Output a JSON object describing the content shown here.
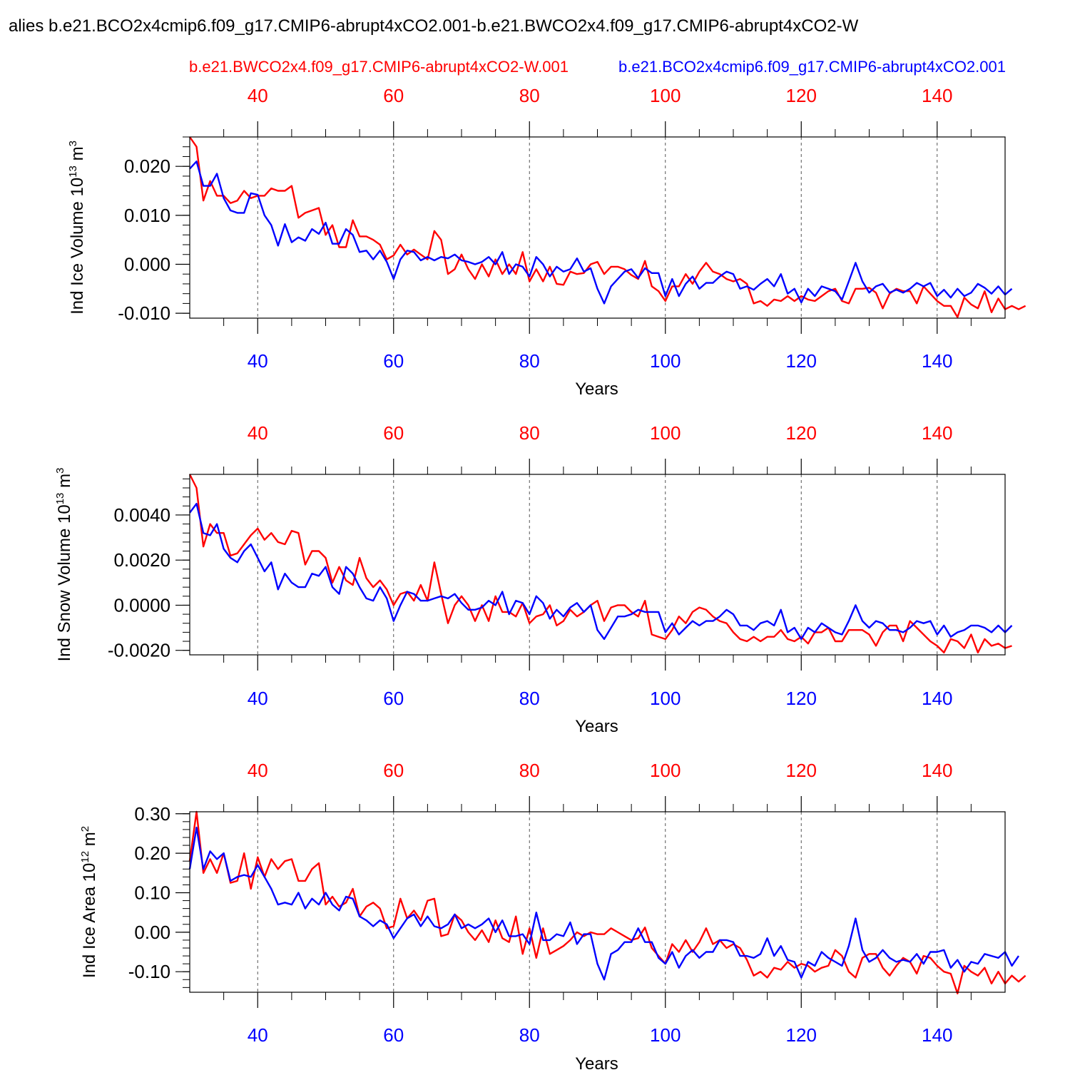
{
  "title": "alies b.e21.BCO2x4cmip6.f09_g17.CMIP6-abrupt4xCO2.001-b.e21.BWCO2x4.f09_g17.CMIP6-abrupt4xCO2-W",
  "legend": {
    "red_label": "b.e21.BWCO2x4.f09_g17.CMIP6-abrupt4xCO2-W.001",
    "blue_label": "b.e21.BCO2x4cmip6.f09_g17.CMIP6-abrupt4xCO2.001"
  },
  "colors": {
    "red": "#ff0000",
    "blue": "#0000ff",
    "axis": "#000000",
    "grid": "#555555"
  },
  "chart_data": [
    {
      "type": "line",
      "name": "ice-volume",
      "ylabel": "Ind Ice Volume 10",
      "yunit_exp": "13",
      "yunit": " m",
      "yunit_pow": "3",
      "xlabel": "Years",
      "xlim": [
        30,
        150
      ],
      "ylim": [
        -0.011,
        0.026
      ],
      "xticks": [
        40,
        60,
        80,
        100,
        120,
        140
      ],
      "xtick_labels": [
        "40",
        "60",
        "80",
        "100",
        "120",
        "140"
      ],
      "yticks": [
        0.02,
        0.01,
        0.0,
        -0.01
      ],
      "ytick_labels": [
        "0.020",
        "0.010",
        "0.000",
        "-0.010"
      ],
      "yminor_step": 0.002,
      "series": [
        {
          "name": "red",
          "color": "#ff0000",
          "x_start": 30,
          "values": [
            0.026,
            0.024,
            0.013,
            0.017,
            0.014,
            0.014,
            0.0125,
            0.013,
            0.015,
            0.0135,
            0.014,
            0.014,
            0.0155,
            0.015,
            0.015,
            0.016,
            0.0095,
            0.0105,
            0.011,
            0.0115,
            0.006,
            0.008,
            0.0035,
            0.0035,
            0.009,
            0.0057,
            0.0057,
            0.005,
            0.004,
            0.001,
            0.0018,
            0.004,
            0.002,
            0.003,
            0.002,
            0.001,
            0.0068,
            0.005,
            -0.002,
            -0.001,
            0.002,
            -0.001,
            -0.003,
            0.0,
            -0.0025,
            0.001,
            -0.002,
            0.0,
            -0.002,
            0.0025,
            -0.0035,
            -0.001,
            -0.0035,
            -0.0005,
            -0.004,
            -0.0042,
            -0.0015,
            -0.002,
            -0.0018,
            0.0,
            0.0005,
            -0.002,
            -0.0005,
            -0.0005,
            -0.001,
            -0.0022,
            -0.003,
            0.0007,
            -0.0045,
            -0.0055,
            -0.0075,
            -0.0045,
            -0.0045,
            -0.002,
            -0.004,
            -0.0015,
            0.0003,
            -0.0015,
            -0.002,
            -0.003,
            -0.0035,
            -0.003,
            -0.004,
            -0.008,
            -0.0075,
            -0.0085,
            -0.0072,
            -0.0075,
            -0.0065,
            -0.0075,
            -0.0065,
            -0.0072,
            -0.0075,
            -0.0065,
            -0.0055,
            -0.005,
            -0.0075,
            -0.008,
            -0.005,
            -0.005,
            -0.0048,
            -0.0058,
            -0.009,
            -0.006,
            -0.005,
            -0.0055,
            -0.0055,
            -0.008,
            -0.0045,
            -0.006,
            -0.0075,
            -0.0085,
            -0.0085,
            -0.0108,
            -0.0068,
            -0.0082,
            -0.009,
            -0.0055,
            -0.0098,
            -0.007,
            -0.0092,
            -0.0085,
            -0.0092,
            -0.0085
          ]
        },
        {
          "name": "blue",
          "color": "#0000ff",
          "x_start": 30,
          "values": [
            0.0195,
            0.021,
            0.016,
            0.016,
            0.0185,
            0.0135,
            0.011,
            0.0105,
            0.0105,
            0.0145,
            0.0142,
            0.01,
            0.008,
            0.0038,
            0.0082,
            0.0045,
            0.0055,
            0.0048,
            0.0072,
            0.0062,
            0.0085,
            0.0042,
            0.0042,
            0.0072,
            0.006,
            0.0025,
            0.0028,
            0.001,
            0.0028,
            0.0005,
            -0.003,
            0.001,
            0.0028,
            0.0025,
            0.0008,
            0.0015,
            0.0008,
            0.0015,
            0.0012,
            0.002,
            0.0008,
            0.0005,
            0.0,
            0.0005,
            0.0015,
            0.0,
            0.0025,
            -0.002,
            0.0,
            -0.0005,
            -0.0025,
            0.0015,
            0.0,
            -0.0025,
            -0.0005,
            -0.0015,
            -0.001,
            0.0012,
            -0.0015,
            -0.0008,
            -0.005,
            -0.008,
            -0.0045,
            -0.003,
            -0.0015,
            -0.001,
            -0.0028,
            -0.0008,
            -0.0018,
            -0.0018,
            -0.0065,
            -0.003,
            -0.0065,
            -0.004,
            -0.0025,
            -0.005,
            -0.0038,
            -0.0038,
            -0.0025,
            -0.0015,
            -0.002,
            -0.005,
            -0.0045,
            -0.0052,
            -0.004,
            -0.003,
            -0.0045,
            -0.002,
            -0.006,
            -0.005,
            -0.0078,
            -0.005,
            -0.0065,
            -0.0045,
            -0.005,
            -0.0055,
            -0.0072,
            -0.0035,
            0.0003,
            -0.0035,
            -0.0058,
            -0.0045,
            -0.004,
            -0.0058,
            -0.0052,
            -0.0058,
            -0.005,
            -0.0038,
            -0.0045,
            -0.0038,
            -0.0065,
            -0.0052,
            -0.0068,
            -0.005,
            -0.0065,
            -0.0058,
            -0.004,
            -0.0048,
            -0.006,
            -0.0045,
            -0.0062,
            -0.005
          ]
        }
      ]
    },
    {
      "type": "line",
      "name": "snow-volume",
      "ylabel": "Ind Snow Volume 10",
      "yunit_exp": "13",
      "yunit": " m",
      "yunit_pow": "3",
      "xlabel": "Years",
      "xlim": [
        30,
        150
      ],
      "ylim": [
        -0.0022,
        0.0058
      ],
      "xticks": [
        40,
        60,
        80,
        100,
        120,
        140
      ],
      "xtick_labels": [
        "40",
        "60",
        "80",
        "100",
        "120",
        "140"
      ],
      "yticks": [
        0.004,
        0.002,
        0.0,
        -0.002
      ],
      "ytick_labels": [
        "0.0040",
        "0.0020",
        "0.0000",
        "-0.0020"
      ],
      "yminor_step": 0.0004,
      "series": [
        {
          "name": "red",
          "color": "#ff0000",
          "x_start": 30,
          "values": [
            0.0058,
            0.0052,
            0.0026,
            0.0036,
            0.0032,
            0.0032,
            0.0022,
            0.0023,
            0.0027,
            0.0031,
            0.0034,
            0.0029,
            0.0032,
            0.0028,
            0.0027,
            0.0033,
            0.0032,
            0.0018,
            0.0024,
            0.0024,
            0.0021,
            0.001,
            0.0017,
            0.0011,
            0.0009,
            0.0021,
            0.0012,
            0.0008,
            0.0011,
            0.0007,
            0.0,
            0.0005,
            0.0006,
            0.0002,
            0.0009,
            0.0002,
            0.0019,
            0.0005,
            -0.0008,
            0.0,
            0.0004,
            0.0,
            -0.0007,
            0.0,
            -0.0007,
            0.0004,
            -0.0003,
            -0.0003,
            -0.0005,
            0.0001,
            -0.0008,
            -0.0005,
            -0.0004,
            0.0,
            -0.0009,
            -0.0007,
            -0.0002,
            -0.0005,
            -0.0003,
            0.0,
            0.0002,
            -0.0007,
            -0.0001,
            0.0,
            0.0,
            -0.0003,
            -0.0005,
            0.0002,
            -0.0013,
            -0.0014,
            -0.0015,
            -0.0011,
            -0.0005,
            -0.0008,
            -0.0003,
            -0.0001,
            -0.0002,
            -0.0005,
            -0.0007,
            -0.0008,
            -0.0012,
            -0.0015,
            -0.0016,
            -0.0014,
            -0.0016,
            -0.0014,
            -0.0014,
            -0.0011,
            -0.0015,
            -0.0016,
            -0.0014,
            -0.0017,
            -0.0012,
            -0.0012,
            -0.001,
            -0.0016,
            -0.0016,
            -0.0011,
            -0.0011,
            -0.0011,
            -0.0013,
            -0.0018,
            -0.0012,
            -0.0009,
            -0.0009,
            -0.0016,
            -0.0007,
            -0.001,
            -0.0013,
            -0.0016,
            -0.0018,
            -0.0021,
            -0.0015,
            -0.0016,
            -0.0019,
            -0.0013,
            -0.0021,
            -0.0015,
            -0.0018,
            -0.0017,
            -0.0019,
            -0.0018
          ]
        },
        {
          "name": "blue",
          "color": "#0000ff",
          "x_start": 30,
          "values": [
            0.0041,
            0.0045,
            0.0032,
            0.0031,
            0.0036,
            0.0025,
            0.0021,
            0.0019,
            0.0024,
            0.0027,
            0.0021,
            0.0015,
            0.0019,
            0.0007,
            0.0014,
            0.001,
            0.0008,
            0.0008,
            0.0014,
            0.0013,
            0.0017,
            0.0008,
            0.0005,
            0.0017,
            0.0014,
            0.0008,
            0.0003,
            0.0002,
            0.0008,
            0.0003,
            -0.0007,
            0.0,
            0.0006,
            0.0005,
            0.0002,
            0.0002,
            0.0003,
            0.0004,
            0.0003,
            0.0005,
            0.0001,
            -0.0002,
            -0.0002,
            -0.0001,
            0.0002,
            0.0,
            0.0006,
            -0.0004,
            0.0002,
            0.0001,
            -0.0004,
            0.0004,
            0.0001,
            -0.0006,
            -0.0002,
            -0.0005,
            -0.0001,
            0.0001,
            -0.0003,
            0.0,
            -0.0011,
            -0.0015,
            -0.001,
            -0.0005,
            -0.0005,
            -0.0004,
            -0.0002,
            -0.0003,
            -0.0003,
            -0.0003,
            -0.0012,
            -0.0008,
            -0.0013,
            -0.001,
            -0.0007,
            -0.0009,
            -0.0007,
            -0.0007,
            -0.0005,
            -0.0002,
            -0.0004,
            -0.0009,
            -0.0009,
            -0.0011,
            -0.0008,
            -0.0007,
            -0.0009,
            -0.0002,
            -0.0012,
            -0.001,
            -0.0015,
            -0.001,
            -0.0012,
            -0.0008,
            -0.001,
            -0.0012,
            -0.0013,
            -0.0007,
            0.0,
            -0.0007,
            -0.001,
            -0.0007,
            -0.0008,
            -0.0011,
            -0.0011,
            -0.0012,
            -0.001,
            -0.0007,
            -0.0008,
            -0.0007,
            -0.0013,
            -0.0009,
            -0.0014,
            -0.0012,
            -0.0011,
            -0.0009,
            -0.0009,
            -0.001,
            -0.0012,
            -0.0009,
            -0.0012,
            -0.0009
          ]
        }
      ]
    },
    {
      "type": "line",
      "name": "ice-area",
      "ylabel": "Ind Ice Area 10",
      "yunit_exp": "12",
      "yunit": " m",
      "yunit_pow": "2",
      "xlabel": "Years",
      "xlim": [
        30,
        150
      ],
      "ylim": [
        -0.152,
        0.305
      ],
      "xticks": [
        40,
        60,
        80,
        100,
        120,
        140
      ],
      "xtick_labels": [
        "40",
        "60",
        "80",
        "100",
        "120",
        "140"
      ],
      "yticks": [
        0.3,
        0.2,
        0.1,
        0.0,
        -0.1
      ],
      "ytick_labels": [
        "0.30",
        "0.20",
        "0.10",
        "0.00",
        "-0.10"
      ],
      "yminor_step": 0.02,
      "series": [
        {
          "name": "red",
          "color": "#ff0000",
          "x_start": 30,
          "values": [
            0.18,
            0.305,
            0.15,
            0.185,
            0.15,
            0.2,
            0.125,
            0.13,
            0.2,
            0.11,
            0.19,
            0.14,
            0.185,
            0.16,
            0.18,
            0.185,
            0.13,
            0.13,
            0.16,
            0.175,
            0.07,
            0.09,
            0.065,
            0.075,
            0.11,
            0.04,
            0.065,
            0.075,
            0.06,
            0.01,
            0.015,
            0.085,
            0.035,
            0.055,
            0.03,
            0.08,
            0.085,
            -0.01,
            -0.005,
            0.045,
            0.03,
            0.0,
            -0.02,
            0.005,
            -0.025,
            0.03,
            -0.015,
            -0.025,
            0.04,
            -0.055,
            0.01,
            -0.065,
            0.01,
            -0.055,
            -0.045,
            -0.035,
            -0.02,
            0.0,
            -0.01,
            0.0,
            -0.005,
            -0.005,
            0.01,
            0.0,
            -0.01,
            -0.02,
            -0.015,
            0.012,
            -0.04,
            -0.06,
            -0.08,
            -0.03,
            -0.05,
            -0.02,
            -0.05,
            -0.025,
            0.01,
            -0.03,
            -0.02,
            -0.04,
            -0.03,
            -0.04,
            -0.07,
            -0.11,
            -0.1,
            -0.115,
            -0.09,
            -0.095,
            -0.075,
            -0.09,
            -0.08,
            -0.085,
            -0.1,
            -0.09,
            -0.085,
            -0.045,
            -0.06,
            -0.1,
            -0.115,
            -0.065,
            -0.055,
            -0.055,
            -0.09,
            -0.11,
            -0.085,
            -0.065,
            -0.075,
            -0.105,
            -0.06,
            -0.065,
            -0.085,
            -0.1,
            -0.105,
            -0.155,
            -0.085,
            -0.1,
            -0.11,
            -0.09,
            -0.13,
            -0.1,
            -0.13,
            -0.11,
            -0.125,
            -0.11
          ]
        },
        {
          "name": "blue",
          "color": "#0000ff",
          "x_start": 30,
          "values": [
            0.16,
            0.265,
            0.16,
            0.205,
            0.185,
            0.2,
            0.13,
            0.14,
            0.145,
            0.14,
            0.17,
            0.14,
            0.11,
            0.07,
            0.075,
            0.07,
            0.1,
            0.06,
            0.085,
            0.07,
            0.1,
            0.07,
            0.055,
            0.09,
            0.085,
            0.04,
            0.03,
            0.015,
            0.03,
            0.02,
            -0.015,
            0.01,
            0.035,
            0.045,
            0.015,
            0.04,
            0.015,
            0.01,
            0.02,
            0.045,
            0.01,
            0.02,
            0.01,
            0.02,
            0.035,
            0.0,
            0.03,
            -0.01,
            -0.01,
            -0.005,
            -0.03,
            0.05,
            -0.02,
            -0.02,
            -0.005,
            -0.01,
            0.025,
            -0.03,
            -0.005,
            -0.005,
            -0.08,
            -0.12,
            -0.055,
            -0.045,
            -0.025,
            -0.025,
            0.01,
            -0.025,
            -0.025,
            -0.065,
            -0.08,
            -0.05,
            -0.09,
            -0.06,
            -0.045,
            -0.065,
            -0.05,
            -0.05,
            -0.02,
            -0.02,
            -0.025,
            -0.06,
            -0.06,
            -0.065,
            -0.055,
            -0.015,
            -0.06,
            -0.035,
            -0.07,
            -0.075,
            -0.115,
            -0.075,
            -0.085,
            -0.05,
            -0.065,
            -0.075,
            -0.085,
            -0.035,
            0.035,
            -0.045,
            -0.075,
            -0.065,
            -0.045,
            -0.065,
            -0.075,
            -0.07,
            -0.075,
            -0.055,
            -0.08,
            -0.05,
            -0.05,
            -0.045,
            -0.09,
            -0.07,
            -0.1,
            -0.075,
            -0.08,
            -0.055,
            -0.06,
            -0.065,
            -0.05,
            -0.085,
            -0.06
          ]
        }
      ]
    }
  ]
}
